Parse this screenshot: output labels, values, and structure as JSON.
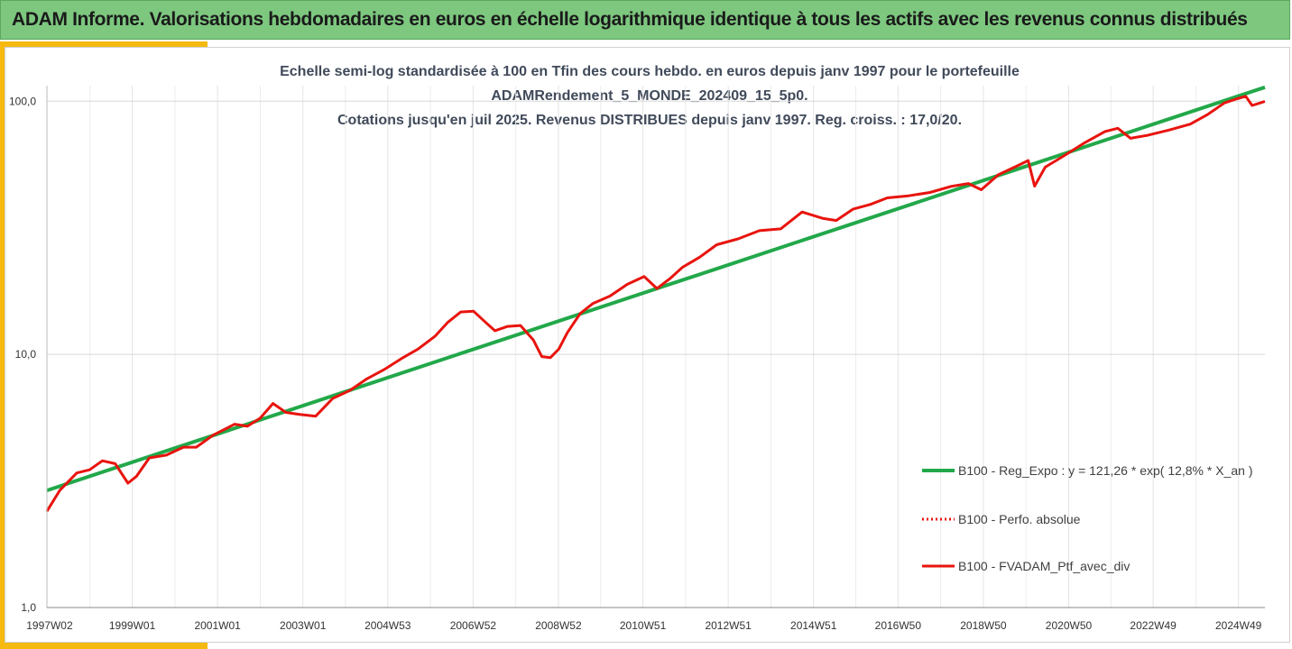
{
  "header": {
    "title": "ADAM Informe. Valorisations hebdomadaires en euros en échelle logarithmique identique à tous les actifs avec les revenus connus distribués"
  },
  "colors": {
    "header_bg": "#7dc77f",
    "accent": "#f5b90f",
    "regression": "#22a84a",
    "portfolio": "#e8140e"
  },
  "chart_data": {
    "type": "line",
    "title_lines": [
      "Echelle semi-log standardisée à 100 en Tfin des cours hebdo.  en euros depuis janv 1997 pour le portefeuille",
      "ADAMRendement_5_MONDE_202409_15_5p0.",
      "Cotations  jusqu'en juil 2025. Revenus DISTRIBUES depuis janv 1997. Reg. croiss. : 17,0/20."
    ],
    "y_scale": "log",
    "ylim": [
      1,
      175
    ],
    "y_ticks": [
      {
        "value": 1,
        "label": "1,0"
      },
      {
        "value": 10,
        "label": "10,0"
      },
      {
        "value": 100,
        "label": "100,0"
      }
    ],
    "xlim": [
      1997.0,
      2025.55
    ],
    "x_ticks": [
      {
        "value": 1997.02,
        "label": "1997W02"
      },
      {
        "value": 1999.0,
        "label": "1999W01"
      },
      {
        "value": 2001.0,
        "label": "2001W01"
      },
      {
        "value": 2003.0,
        "label": "2003W01"
      },
      {
        "value": 2004.99,
        "label": "2004W53"
      },
      {
        "value": 2006.99,
        "label": "2006W52"
      },
      {
        "value": 2008.99,
        "label": "2008W52"
      },
      {
        "value": 2010.97,
        "label": "2010W51"
      },
      {
        "value": 2012.97,
        "label": "2012W51"
      },
      {
        "value": 2014.97,
        "label": "2014W51"
      },
      {
        "value": 2016.95,
        "label": "2016W50"
      },
      {
        "value": 2018.95,
        "label": "2018W50"
      },
      {
        "value": 2020.95,
        "label": "2020W50"
      },
      {
        "value": 2022.93,
        "label": "2022W49"
      },
      {
        "value": 2024.93,
        "label": "2024W49"
      }
    ],
    "grid": "vertical",
    "legend_position": "right",
    "series": [
      {
        "name": "B100 - Reg_Expo : y = 121,26 * exp( 12,8% *  X_an )",
        "style": "solid-green",
        "x": [
          1997.0,
          2025.55
        ],
        "y": [
          2.9,
          113.5
        ]
      },
      {
        "name": "B100 - Perfo. absolue",
        "style": "dotted-red",
        "x": [],
        "y": []
      },
      {
        "name": "B100 - FVADAM_Ptf_avec_div",
        "style": "solid-red",
        "x": [
          1997.0,
          1997.3,
          1997.7,
          1998.0,
          1998.3,
          1998.6,
          1998.9,
          1999.1,
          1999.4,
          1999.8,
          2000.2,
          2000.5,
          2000.9,
          2001.4,
          2001.7,
          2002.0,
          2002.3,
          2002.6,
          2002.9,
          2003.3,
          2003.7,
          2004.1,
          2004.5,
          2004.9,
          2005.3,
          2005.7,
          2006.1,
          2006.4,
          2006.7,
          2007.0,
          2007.3,
          2007.5,
          2007.8,
          2008.1,
          2008.4,
          2008.6,
          2008.8,
          2009.0,
          2009.2,
          2009.5,
          2009.8,
          2010.2,
          2010.6,
          2011.0,
          2011.3,
          2011.6,
          2011.9,
          2012.3,
          2012.7,
          2013.2,
          2013.7,
          2014.2,
          2014.7,
          2015.2,
          2015.5,
          2015.9,
          2016.3,
          2016.7,
          2017.2,
          2017.7,
          2018.2,
          2018.6,
          2018.9,
          2019.3,
          2019.7,
          2020.0,
          2020.15,
          2020.4,
          2020.8,
          2021.3,
          2021.8,
          2022.1,
          2022.4,
          2022.8,
          2023.3,
          2023.8,
          2024.2,
          2024.6,
          2024.9,
          2025.1,
          2025.25,
          2025.55
        ],
        "y": [
          2.4,
          2.9,
          3.4,
          3.5,
          3.8,
          3.7,
          3.1,
          3.3,
          3.9,
          4.0,
          4.3,
          4.3,
          4.8,
          5.3,
          5.2,
          5.6,
          6.4,
          5.9,
          5.8,
          5.7,
          6.7,
          7.2,
          8.0,
          8.7,
          9.6,
          10.5,
          11.8,
          13.4,
          14.7,
          14.8,
          13.3,
          12.4,
          12.9,
          13.0,
          11.4,
          9.8,
          9.7,
          10.5,
          12.2,
          14.5,
          15.9,
          17.0,
          18.9,
          20.3,
          18.2,
          19.9,
          22.1,
          24.2,
          27.1,
          28.6,
          30.8,
          31.3,
          36.5,
          34.4,
          33.8,
          37.5,
          39.1,
          41.5,
          42.3,
          43.6,
          46.1,
          47.3,
          44.7,
          51.2,
          55.1,
          58.3,
          46.2,
          54.9,
          60.3,
          68.1,
          75.9,
          78.2,
          71.4,
          73.3,
          76.9,
          81.2,
          88.5,
          98.4,
          102.3,
          104.6,
          96.2,
          99.8
        ]
      }
    ]
  }
}
